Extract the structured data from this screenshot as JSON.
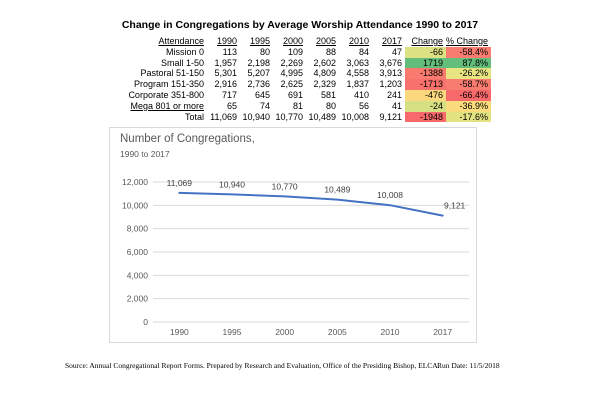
{
  "title": "Change in Congregations by Average Worship Attendance 1990 to 2017",
  "table": {
    "headers": [
      "Attendance",
      "1990",
      "1995",
      "2000",
      "2005",
      "2010",
      "2017",
      "Change",
      "% Change"
    ],
    "rows": [
      {
        "label": "Mission 0",
        "underline": false,
        "values": [
          "113",
          "80",
          "109",
          "88",
          "84",
          "47"
        ],
        "change": "-66",
        "change_bg": "#dce183",
        "pct": "-58.4%",
        "pct_bg": "#f87d70"
      },
      {
        "label": "Small 1-50",
        "underline": false,
        "values": [
          "1,957",
          "2,198",
          "2,269",
          "2,602",
          "3,063",
          "3,676"
        ],
        "change": "1719",
        "change_bg": "#63be7b",
        "pct": "87.8%",
        "pct_bg": "#63be7b"
      },
      {
        "label": "Pastoral 51-150",
        "underline": false,
        "values": [
          "5,301",
          "5,207",
          "4,995",
          "4,809",
          "4,558",
          "3,913"
        ],
        "change": "-1388",
        "change_bg": "#f97a6e",
        "pct": "-26.2%",
        "pct_bg": "#e9e482"
      },
      {
        "label": "Program 151-350",
        "underline": false,
        "values": [
          "2,916",
          "2,736",
          "2,625",
          "2,329",
          "1,837",
          "1,203"
        ],
        "change": "-1713",
        "change_bg": "#f8716c",
        "pct": "-58.7%",
        "pct_bg": "#f87d70"
      },
      {
        "label": "Corporate 351-800",
        "underline": false,
        "values": [
          "717",
          "645",
          "691",
          "581",
          "410",
          "241"
        ],
        "change": "-476",
        "change_bg": "#fbd77d",
        "pct": "-66.4%",
        "pct_bg": "#f8696b"
      },
      {
        "label": "Mega 801 or more",
        "underline": true,
        "values": [
          "65",
          "74",
          "81",
          "80",
          "56",
          "41"
        ],
        "change": "-24",
        "change_bg": "#d6df81",
        "pct": "-36.9%",
        "pct_bg": "#fadc7d"
      },
      {
        "label": "Total",
        "underline": false,
        "values": [
          "11,069",
          "10,940",
          "10,770",
          "10,489",
          "10,008",
          "9,121"
        ],
        "change": "-1948",
        "change_bg": "#f8696b",
        "pct": "-17.6%",
        "pct_bg": "#e3e281"
      }
    ]
  },
  "chart_data": {
    "type": "line",
    "title": "Number of Congregations,",
    "subtitle": "1990 to 2017",
    "x": [
      "1990",
      "1995",
      "2000",
      "2005",
      "2010",
      "2017"
    ],
    "values": [
      11069,
      10940,
      10770,
      10489,
      10008,
      9121
    ],
    "point_labels": [
      "11,069",
      "10,940",
      "10,770",
      "10,489",
      "10,008",
      "9,121"
    ],
    "yticks": [
      {
        "label": "12,000",
        "value": 12000
      },
      {
        "label": "10,000",
        "value": 10000
      },
      {
        "label": "8,000",
        "value": 8000
      },
      {
        "label": "6,000",
        "value": 6000
      },
      {
        "label": "4,000",
        "value": 4000
      },
      {
        "label": "2,000",
        "value": 2000
      },
      {
        "label": "0",
        "value": 0
      }
    ],
    "ylim": [
      0,
      12000
    ],
    "grid": true,
    "legend": "none",
    "line_color": "#4472c4",
    "gridline_color": "#d9d9d9",
    "axis_text_color": "#595959",
    "label_text_color": "#404040"
  },
  "footer": {
    "source": "Source:  Annual Congregational Report Forms.   Prepared by Research and Evaluation, Office of the Presiding Bishop, ELCA.",
    "run_date": "Run Date:  11/5/2018"
  }
}
